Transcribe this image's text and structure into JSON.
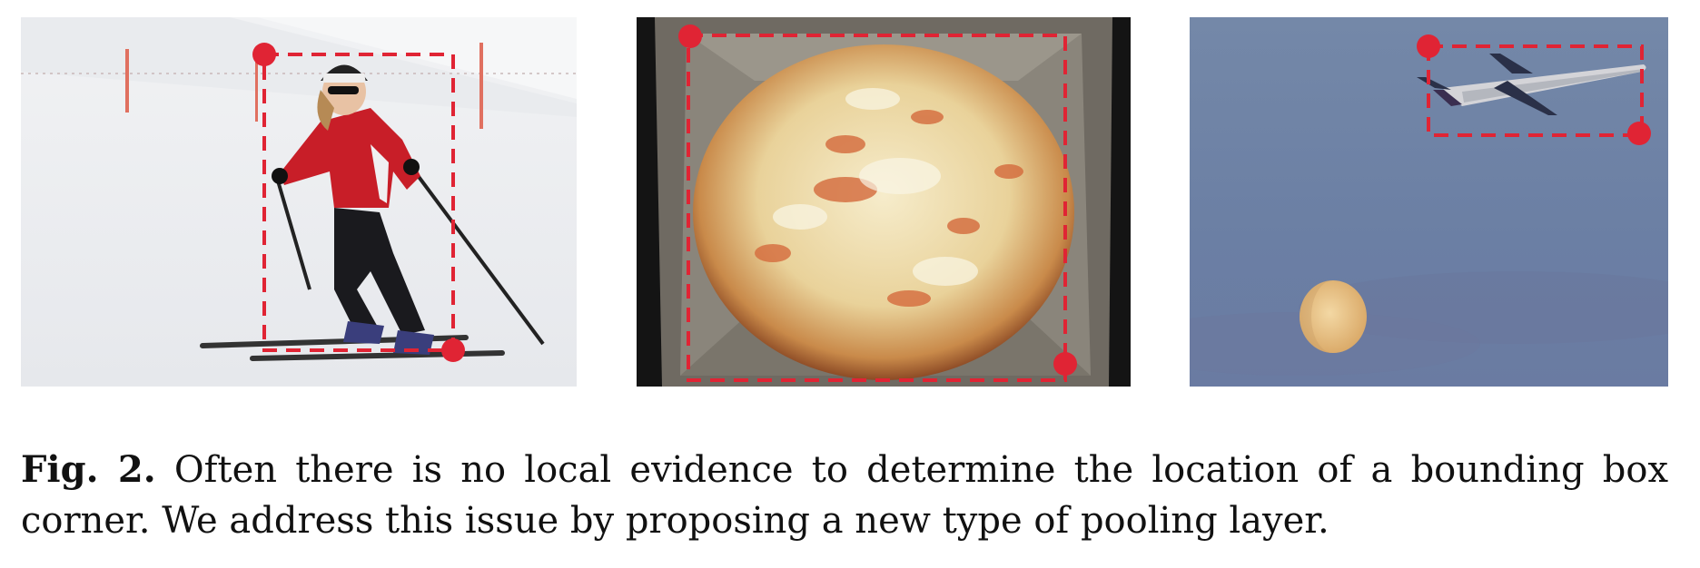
{
  "figure": {
    "panels": [
      {
        "scene": "skier",
        "box_color": "#e02434"
      },
      {
        "scene": "pizza",
        "box_color": "#e02434"
      },
      {
        "scene": "airplane",
        "box_color": "#e02434"
      }
    ],
    "caption_label": "Fig. 2.",
    "caption_text": "Often there is no local evidence to determine the location of a bounding box corner. We address this issue by proposing a new type of pooling layer."
  }
}
